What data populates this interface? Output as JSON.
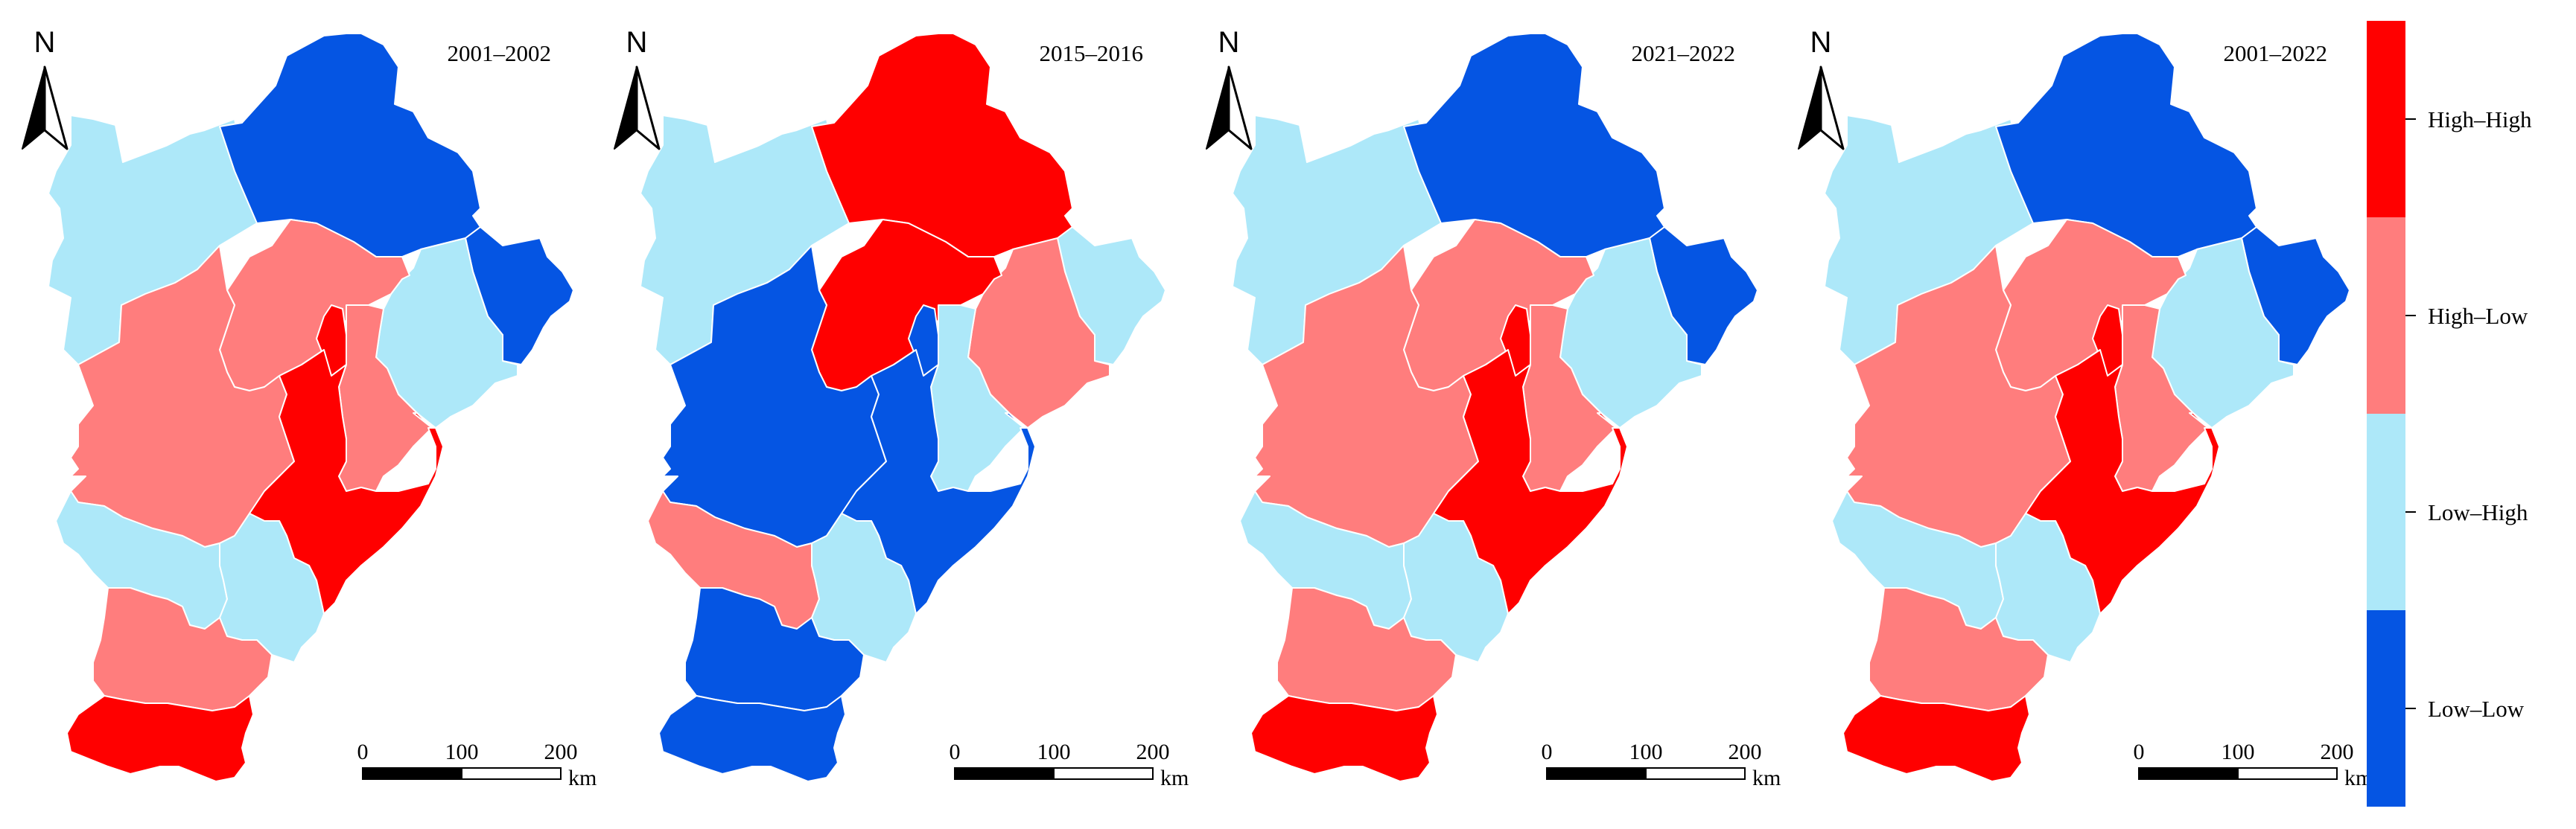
{
  "colors": {
    "High–High": "#ff0000",
    "High–Low": "#ff7d7d",
    "Low–High": "#ade8f9",
    "Low–Low": "#0555e3"
  },
  "legend": {
    "items": [
      {
        "label": "High–High",
        "class": "High–High"
      },
      {
        "label": "High–Low",
        "class": "High–Low"
      },
      {
        "label": "Low–High",
        "class": "Low–High"
      },
      {
        "label": "Low–Low",
        "class": "Low–Low"
      }
    ]
  },
  "north_arrow_label": "N",
  "scale_bar": {
    "ticks": [
      "0",
      "100",
      "200"
    ],
    "unit": "km"
  },
  "panels": [
    {
      "period": "2001–2002",
      "regions": {
        "chengde": "Low–Low",
        "zhangjiakou": "Low–High",
        "qinhuangdao": "Low–Low",
        "tangshan": "Low–High",
        "beijing": "High–Low",
        "tianjin": "High–Low",
        "langfang": "High–High",
        "baoding": "High–Low",
        "cangzhou": "High–High",
        "hengshui": "Low–High",
        "shijiazhuang": "Low–High",
        "xingtai": "High–Low",
        "handan": "High–High"
      }
    },
    {
      "period": "2015–2016",
      "regions": {
        "chengde": "High–High",
        "zhangjiakou": "Low–High",
        "qinhuangdao": "Low–High",
        "tangshan": "High–Low",
        "beijing": "High–High",
        "tianjin": "Low–High",
        "langfang": "Low–Low",
        "baoding": "Low–Low",
        "cangzhou": "Low–Low",
        "hengshui": "Low–High",
        "shijiazhuang": "High–Low",
        "xingtai": "Low–Low",
        "handan": "Low–Low"
      }
    },
    {
      "period": "2021–2022",
      "regions": {
        "chengde": "Low–Low",
        "zhangjiakou": "Low–High",
        "qinhuangdao": "Low–Low",
        "tangshan": "Low–High",
        "beijing": "High–Low",
        "tianjin": "High–Low",
        "langfang": "High–High",
        "baoding": "High–Low",
        "cangzhou": "High–High",
        "hengshui": "Low–High",
        "shijiazhuang": "Low–High",
        "xingtai": "High–Low",
        "handan": "High–High"
      }
    },
    {
      "period": "2001–2022",
      "regions": {
        "chengde": "Low–Low",
        "zhangjiakou": "Low–High",
        "qinhuangdao": "Low–Low",
        "tangshan": "Low–High",
        "beijing": "High–Low",
        "tianjin": "High–Low",
        "langfang": "High–High",
        "baoding": "High–Low",
        "cangzhou": "High–High",
        "hengshui": "Low–High",
        "shijiazhuang": "Low–High",
        "xingtai": "High–Low",
        "handan": "High–High"
      }
    }
  ]
}
